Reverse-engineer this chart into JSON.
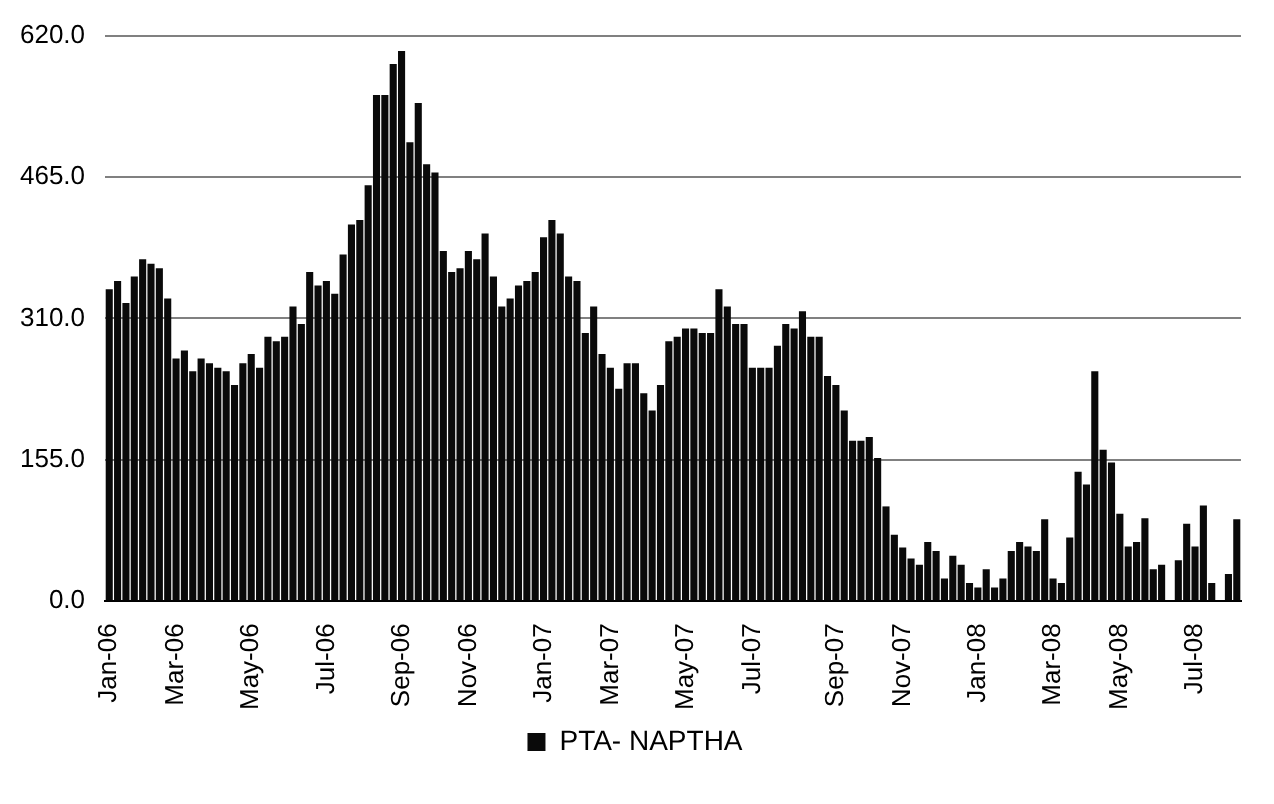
{
  "chart_data": {
    "type": "bar",
    "categories": [
      "Jan-06",
      null,
      null,
      null,
      null,
      null,
      null,
      null,
      "Mar-06",
      null,
      null,
      null,
      null,
      null,
      null,
      null,
      null,
      "May-06",
      null,
      null,
      null,
      null,
      null,
      null,
      null,
      null,
      "Jul-06",
      null,
      null,
      null,
      null,
      null,
      null,
      null,
      null,
      "Sep-06",
      null,
      null,
      null,
      null,
      null,
      null,
      null,
      "Nov-06",
      null,
      null,
      null,
      null,
      null,
      null,
      null,
      null,
      "Jan-07",
      null,
      null,
      null,
      null,
      null,
      null,
      null,
      "Mar-07",
      null,
      null,
      null,
      null,
      null,
      null,
      null,
      null,
      "May-07",
      null,
      null,
      null,
      null,
      null,
      null,
      null,
      "Jul-07",
      null,
      null,
      null,
      null,
      null,
      null,
      null,
      null,
      null,
      "Sep-07",
      null,
      null,
      null,
      null,
      null,
      null,
      null,
      "Nov-07",
      null,
      null,
      null,
      null,
      null,
      null,
      null,
      null,
      "Jan-08",
      null,
      null,
      null,
      null,
      null,
      null,
      null,
      null,
      "Mar-08",
      null,
      null,
      null,
      null,
      null,
      null,
      null,
      "May-08",
      null,
      null,
      null,
      null,
      null,
      null,
      null,
      null,
      "Jul-08",
      null,
      null,
      null,
      null,
      null
    ],
    "series": [
      {
        "name": "PTA- NAPTHA",
        "color": "#0a0a0a",
        "values": [
          342,
          351,
          327,
          356,
          375,
          370,
          365,
          332,
          266,
          275,
          252,
          266,
          261,
          256,
          252,
          237,
          261,
          271,
          256,
          290,
          285,
          290,
          323,
          304,
          361,
          346,
          351,
          337,
          380,
          413,
          418,
          456,
          555,
          555,
          589,
          603,
          503,
          546,
          479,
          470,
          384,
          361,
          365,
          384,
          375,
          403,
          356,
          323,
          332,
          346,
          351,
          361,
          399,
          418,
          403,
          356,
          351,
          294,
          323,
          271,
          256,
          233,
          261,
          261,
          228,
          209,
          237,
          285,
          290,
          299,
          299,
          294,
          294,
          342,
          323,
          304,
          304,
          256,
          256,
          256,
          280,
          304,
          299,
          318,
          290,
          290,
          247,
          237,
          209,
          176,
          176,
          180,
          157,
          104,
          73,
          59,
          47,
          40,
          65,
          55,
          25,
          50,
          40,
          20,
          15,
          35,
          15,
          25,
          55,
          65,
          60,
          55,
          90,
          25,
          20,
          70,
          142,
          128,
          252,
          166,
          152,
          96,
          60,
          65,
          91,
          35,
          40,
          null,
          45,
          85,
          60,
          105,
          20,
          null,
          30,
          90
        ]
      }
    ],
    "ylim": [
      0,
      620
    ],
    "yticks": [
      {
        "value": 0,
        "label": "0.0"
      },
      {
        "value": 155,
        "label": "155.0"
      },
      {
        "value": 310,
        "label": "310.0"
      },
      {
        "value": 465,
        "label": "465.0"
      },
      {
        "value": 620,
        "label": "620.0"
      }
    ],
    "grid": "y",
    "legend": "bottom"
  }
}
